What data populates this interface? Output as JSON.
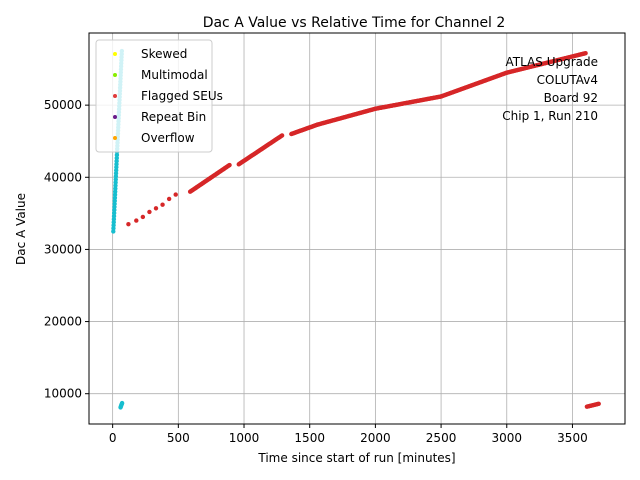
{
  "chart_data": {
    "type": "scatter",
    "title": "Dac A Value vs Relative Time for Channel 2",
    "xlabel": "Time since start of run [minutes]",
    "ylabel": "Dac A Value",
    "xlim": [
      -180,
      3900
    ],
    "ylim": [
      5800,
      60000
    ],
    "x_ticks": [
      0,
      500,
      1000,
      1500,
      2000,
      2500,
      3000,
      3500
    ],
    "y_ticks": [
      10000,
      20000,
      30000,
      40000,
      50000
    ],
    "grid": true,
    "legend_position": "upper-left",
    "legend": [
      {
        "name": "Skewed",
        "color": "#ffff00"
      },
      {
        "name": "Multimodal",
        "color": "#88ee00"
      },
      {
        "name": "Flagged SEUs",
        "color": "#e03c3c"
      },
      {
        "name": "Repeat Bin",
        "color": "#6a1b8a"
      },
      {
        "name": "Overflow",
        "color": "#ffa500"
      }
    ],
    "annotation": [
      "ATLAS Upgrade",
      "COLUTAv4",
      "Board 92",
      "Chip 1, Run 210"
    ],
    "series": [
      {
        "name": "Flagged SEUs",
        "color": "#d62728",
        "segments": [
          {
            "x": [
              120,
              180,
              230,
              280,
              330,
              380,
              430,
              480
            ],
            "y": [
              33500,
              34000,
              34500,
              35200,
              35700,
              36200,
              37000,
              37600
            ]
          },
          {
            "x_range": [
              590,
              890
            ],
            "y_range": [
              38000,
              41700
            ],
            "n": 60
          },
          {
            "x_range": [
              960,
              1290
            ],
            "y_range": [
              41800,
              45800
            ],
            "n": 60
          },
          {
            "x_range": [
              1360,
              1560
            ],
            "y_range": [
              46000,
              47300
            ],
            "n": 40
          },
          {
            "x_range": [
              1560,
              2000
            ],
            "y_range": [
              47300,
              49500
            ],
            "n": 70
          },
          {
            "x_range": [
              2000,
              2500
            ],
            "y_range": [
              49500,
              51200
            ],
            "n": 80
          },
          {
            "x_range": [
              2500,
              3000
            ],
            "y_range": [
              51200,
              54500
            ],
            "n": 80
          },
          {
            "x_range": [
              3000,
              3600
            ],
            "y_range": [
              54500,
              57200
            ],
            "n": 90
          },
          {
            "x_range": [
              3610,
              3700
            ],
            "y_range": [
              8200,
              8600
            ],
            "n": 15
          }
        ]
      },
      {
        "name": "cyan",
        "color": "#17becf",
        "segments": [
          {
            "x_range": [
              5,
              70
            ],
            "y_range": [
              32500,
              57500
            ],
            "n": 60
          },
          {
            "x_range": [
              60,
              72
            ],
            "y_range": [
              8100,
              8700
            ],
            "n": 6
          }
        ]
      }
    ]
  }
}
